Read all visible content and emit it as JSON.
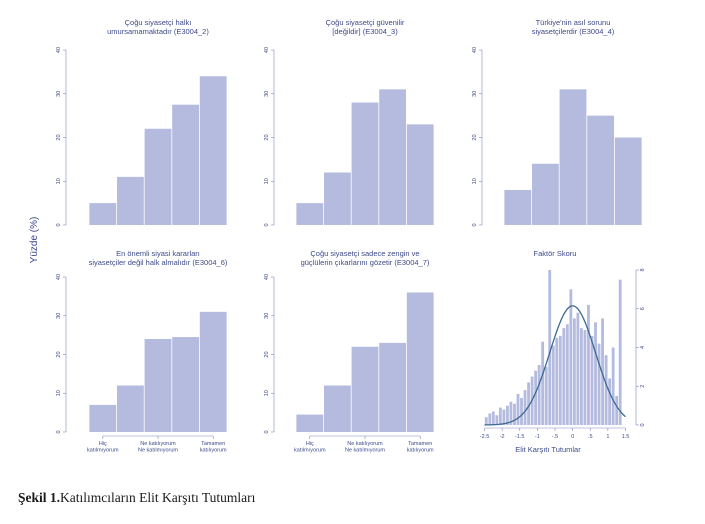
{
  "y_axis_label": "Yüzde (%)",
  "caption": {
    "prefix": "Şekil 1.",
    "text": "Katılımcıların Elit Karşıtı Tutumları"
  },
  "chart_data": [
    {
      "type": "bar",
      "title_lines": [
        "Çoğu siyasetçi halkı",
        "umursamamaktadır (E3004_2)"
      ],
      "values": [
        5,
        11,
        22,
        27.5,
        34
      ],
      "ylim": [
        0,
        40
      ],
      "yticks": [
        "0",
        "10",
        "20",
        "30",
        "40"
      ],
      "xtick_labels": []
    },
    {
      "type": "bar",
      "title_lines": [
        "Çoğu siyasetçi güvenilir",
        "[değildir] (E3004_3)"
      ],
      "values": [
        5,
        12,
        28,
        31,
        23
      ],
      "ylim": [
        0,
        40
      ],
      "yticks": [
        "0",
        "10",
        "20",
        "30",
        "40"
      ],
      "xtick_labels": []
    },
    {
      "type": "bar",
      "title_lines": [
        "Türkiye'nin asıl sorunu",
        "siyasetçilerdir (E3004_4)"
      ],
      "values": [
        8,
        14,
        31,
        25,
        20
      ],
      "ylim": [
        0,
        40
      ],
      "yticks": [
        "0",
        "10",
        "20",
        "30",
        "40"
      ],
      "xtick_labels": []
    },
    {
      "type": "bar",
      "title_lines": [
        "En önemli siyasi kararları",
        "siyasetçiler değil halk almalıdır (E3004_6)"
      ],
      "values": [
        7,
        12,
        24,
        24.5,
        31
      ],
      "ylim": [
        0,
        40
      ],
      "yticks": [
        "0",
        "10",
        "20",
        "30",
        "40"
      ],
      "xtick_labels": [
        {
          "at": 0,
          "lines": [
            "Hiç",
            "katılmıyorum"
          ]
        },
        {
          "at": 2,
          "lines": [
            "Ne katılıyorum",
            "Ne katılmıyorum"
          ]
        },
        {
          "at": 4,
          "lines": [
            "Tamamen",
            "katılıyorum"
          ]
        }
      ]
    },
    {
      "type": "bar",
      "title_lines": [
        "Çoğu siyasetçi sadece zengin ve",
        "güçlülerin çıkarlarını gözetir (E3004_7)"
      ],
      "values": [
        4.5,
        12,
        22,
        23,
        36
      ],
      "ylim": [
        0,
        40
      ],
      "yticks": [
        "0",
        "10",
        "20",
        "30",
        "40"
      ],
      "xtick_labels": [
        {
          "at": 0,
          "lines": [
            "Hiç",
            "katılmıyorum"
          ]
        },
        {
          "at": 2,
          "lines": [
            "Ne katılıyorum",
            "Ne katılmıyorum"
          ]
        },
        {
          "at": 4,
          "lines": [
            "Tamamen",
            "katılıyorum"
          ]
        }
      ]
    },
    {
      "type": "histogram",
      "title_lines": [
        "Faktör Skoru"
      ],
      "xlabel": "Elit Karşıtı Tutumlar",
      "xlim": [
        -2.6,
        1.6
      ],
      "xticks": [
        "-2.5",
        "-2",
        "-1.5",
        "-1",
        "-.5",
        "0",
        ".5",
        "1",
        "1.5"
      ],
      "xtick_values": [
        -2.5,
        -2,
        -1.5,
        -1,
        -0.5,
        0,
        0.5,
        1,
        1.5
      ],
      "ylim": [
        0,
        8
      ],
      "yticks": [
        "0",
        "2",
        "4",
        "6",
        "8"
      ],
      "ytick_values": [
        0,
        2,
        4,
        6,
        8
      ],
      "bin_start": -2.5,
      "bin_width": 0.1,
      "densities": [
        0.4,
        0.6,
        0.7,
        0.5,
        0.9,
        0.8,
        1.0,
        1.2,
        1.1,
        1.6,
        1.4,
        1.8,
        2.2,
        2.5,
        2.8,
        3.1,
        4.3,
        3.0,
        8.0,
        4.1,
        4.5,
        4.6,
        5.0,
        5.2,
        7.0,
        5.5,
        5.8,
        5.0,
        4.9,
        6.2,
        4.6,
        5.3,
        4.2,
        5.5,
        3.6,
        2.4,
        4.0,
        1.5,
        7.5
      ],
      "curve": {
        "type": "normal",
        "mean": 0,
        "sd": 0.65,
        "peak": 6.15
      }
    }
  ]
}
